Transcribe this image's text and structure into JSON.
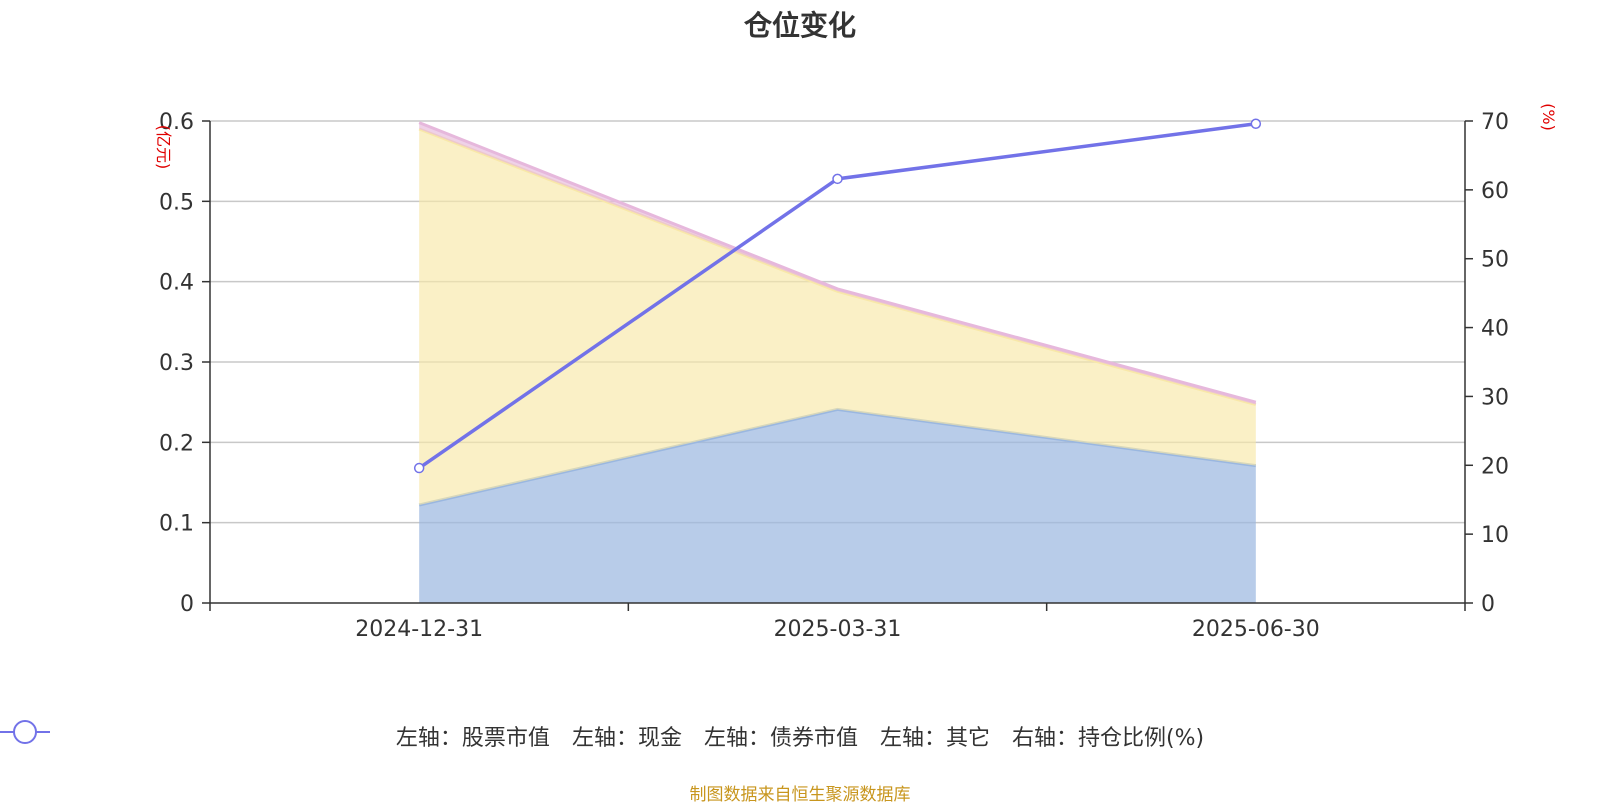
{
  "chart_data": {
    "type": "area",
    "title": "仓位变化",
    "categories": [
      "2024-12-31",
      "2025-03-31",
      "2025-06-30"
    ],
    "left_axis": {
      "unit_label": "(亿元)",
      "ylim": [
        0,
        0.6
      ],
      "ticks": [
        "0",
        "0.1",
        "0.2",
        "0.3",
        "0.4",
        "0.5",
        "0.6"
      ]
    },
    "right_axis": {
      "unit_label": "(%)",
      "ylim": [
        0,
        70
      ],
      "ticks": [
        "0",
        "10",
        "20",
        "30",
        "40",
        "50",
        "60",
        "70"
      ]
    },
    "series": [
      {
        "name": "左轴：股票市值",
        "axis": "left",
        "kind": "stacked-area",
        "color": "#9ab7e0",
        "values": [
          0.122,
          0.241,
          0.171
        ]
      },
      {
        "name": "左轴：现金",
        "axis": "left",
        "kind": "stacked-area",
        "color": "#f8e8a8",
        "values": [
          0.468,
          0.147,
          0.076
        ]
      },
      {
        "name": "左轴：债券市值",
        "axis": "left",
        "kind": "stacked-area",
        "color": "#8fd0d0",
        "values": [
          0,
          0,
          0
        ]
      },
      {
        "name": "左轴：其它",
        "axis": "left",
        "kind": "stacked-area",
        "color": "#e6b8dc",
        "values": [
          0.008,
          0.003,
          0.003
        ]
      },
      {
        "name": "右轴：持仓比例(%)",
        "axis": "right",
        "kind": "line",
        "color": "#7272e8",
        "values": [
          19.6,
          61.6,
          69.6
        ]
      }
    ],
    "grid": true,
    "legend_position": "bottom"
  },
  "source_note": "制图数据来自恒生聚源数据库"
}
